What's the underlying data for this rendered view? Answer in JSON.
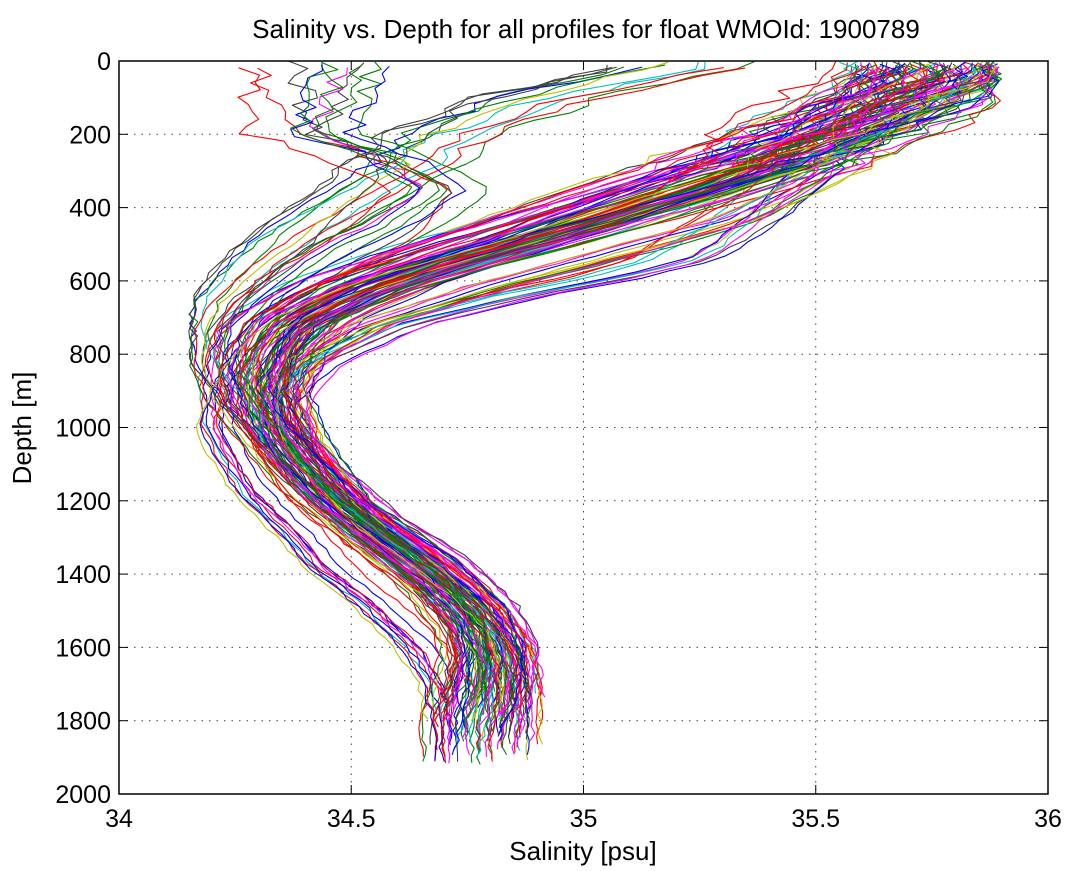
{
  "chart_data": {
    "type": "line",
    "title": "Salinity vs. Depth for all profiles for float WMOId: 1900789",
    "xlabel": "Salinity [psu]",
    "ylabel": "Depth [m]",
    "xlim": [
      34,
      36
    ],
    "ylim": [
      0,
      2000
    ],
    "y_reversed": true,
    "grid": "dotted",
    "x_ticks": [
      "34",
      "34.5",
      "35",
      "35.5",
      "36"
    ],
    "y_ticks": [
      "0",
      "200",
      "400",
      "600",
      "800",
      "1000",
      "1200",
      "1400",
      "1600",
      "1800",
      "2000"
    ],
    "series_colors": [
      "#0000ff",
      "#ff0000",
      "#008000",
      "#ff00ff",
      "#bfbf00",
      "#00bfbf",
      "#404040"
    ],
    "profile_count": 140,
    "representative_profiles": [
      {
        "color": "#0000ff",
        "x": [
          34.78,
          34.8,
          34.81,
          34.82,
          34.8,
          34.72,
          34.62,
          34.5,
          34.4,
          34.36,
          34.38,
          34.45,
          34.62,
          34.85,
          35.1,
          35.35,
          35.55,
          35.7,
          35.8
        ],
        "y": [
          1880,
          1800,
          1700,
          1600,
          1500,
          1400,
          1300,
          1200,
          1000,
          900,
          800,
          700,
          600,
          500,
          400,
          300,
          200,
          100,
          10
        ]
      },
      {
        "color": "#ff0000",
        "x": [
          34.8,
          34.83,
          34.84,
          34.85,
          34.8,
          34.7,
          34.55,
          34.42,
          34.33,
          34.32,
          34.36,
          34.42,
          34.58,
          34.8,
          35.05,
          35.3,
          35.5,
          35.72,
          35.8
        ],
        "y": [
          1820,
          1760,
          1680,
          1600,
          1480,
          1360,
          1240,
          1100,
          980,
          880,
          790,
          700,
          610,
          520,
          430,
          330,
          230,
          120,
          20
        ]
      },
      {
        "color": "#008000",
        "x": [
          34.76,
          34.78,
          34.79,
          34.78,
          34.72,
          34.6,
          34.48,
          34.38,
          34.3,
          34.28,
          34.3,
          34.36,
          34.5,
          34.7,
          34.95,
          35.2,
          35.45,
          35.65,
          35.78
        ],
        "y": [
          1800,
          1720,
          1640,
          1560,
          1440,
          1320,
          1200,
          1080,
          960,
          860,
          780,
          700,
          620,
          530,
          440,
          350,
          250,
          140,
          30
        ]
      },
      {
        "color": "#bfbf00",
        "x": [
          34.72,
          34.7,
          34.65,
          34.55,
          34.45,
          34.38,
          34.3,
          34.25,
          34.22,
          34.22,
          34.24,
          34.3,
          34.45,
          34.7,
          34.95,
          35.2,
          35.45,
          35.75
        ],
        "y": [
          1830,
          1700,
          1600,
          1480,
          1380,
          1280,
          1180,
          1080,
          1000,
          900,
          800,
          700,
          600,
          500,
          400,
          300,
          200,
          30
        ]
      },
      {
        "color": "#ff00ff",
        "x": [
          34.74,
          34.76,
          34.77,
          34.76,
          34.68,
          34.55,
          34.44,
          34.36,
          34.3,
          34.28,
          34.3,
          34.35,
          34.48,
          34.65,
          34.85,
          35.05,
          35.3,
          35.55,
          35.75
        ],
        "y": [
          1790,
          1720,
          1640,
          1560,
          1440,
          1320,
          1200,
          1080,
          960,
          870,
          790,
          710,
          620,
          540,
          450,
          360,
          260,
          150,
          40
        ]
      },
      {
        "color": "#00bfbf",
        "x": [
          34.82,
          34.83,
          34.84,
          34.83,
          34.76,
          34.65,
          34.52,
          34.42,
          34.35,
          34.33,
          34.35,
          34.4,
          34.55,
          34.78,
          35.05,
          35.3,
          35.55,
          35.88
        ],
        "y": [
          1840,
          1760,
          1680,
          1600,
          1480,
          1360,
          1240,
          1120,
          1000,
          900,
          800,
          720,
          630,
          540,
          450,
          350,
          250,
          60
        ]
      },
      {
        "color": "#404040",
        "x": [
          34.84,
          34.85,
          34.85,
          34.84,
          34.78,
          34.68,
          34.55,
          34.44,
          34.37,
          34.35,
          34.36,
          34.4,
          34.52,
          34.72,
          34.98,
          35.25,
          35.5,
          35.7,
          35.82
        ],
        "y": [
          1880,
          1800,
          1720,
          1640,
          1520,
          1400,
          1280,
          1160,
          1040,
          930,
          830,
          740,
          650,
          560,
          470,
          380,
          280,
          160,
          40
        ]
      },
      {
        "color": "#0000ff",
        "x": [
          34.7,
          34.72,
          34.74,
          34.72,
          34.64,
          34.52,
          34.4,
          34.32,
          34.24,
          34.2,
          34.19,
          34.22,
          34.3,
          34.4,
          34.5,
          34.6,
          34.7,
          34.9,
          35.2
        ],
        "y": [
          1780,
          1700,
          1620,
          1540,
          1420,
          1300,
          1180,
          1060,
          940,
          840,
          740,
          660,
          560,
          460,
          380,
          300,
          200,
          100,
          20
        ]
      },
      {
        "color": "#ff0000",
        "x": [
          34.86,
          34.85,
          34.83,
          34.78,
          34.7,
          34.58,
          34.46,
          34.37,
          34.35,
          34.42,
          34.6,
          34.85,
          35.05,
          35.2,
          35.35,
          35.45,
          35.55,
          35.7
        ],
        "y": [
          1740,
          1660,
          1580,
          1500,
          1400,
          1300,
          1180,
          1060,
          940,
          830,
          720,
          640,
          590,
          540,
          420,
          320,
          200,
          60
        ]
      },
      {
        "color": "#008000",
        "x": [
          34.85,
          34.84,
          34.82,
          34.76,
          34.66,
          34.55,
          34.45,
          34.38,
          34.36,
          34.4,
          34.55,
          34.8,
          35.1,
          35.35,
          35.5,
          35.55,
          35.6,
          35.65
        ],
        "y": [
          1720,
          1640,
          1560,
          1480,
          1380,
          1280,
          1160,
          1040,
          920,
          820,
          720,
          620,
          520,
          430,
          330,
          290,
          180,
          50
        ]
      },
      {
        "color": "#ff00ff",
        "x": [
          34.71,
          34.74,
          34.75,
          34.74,
          34.66,
          34.54,
          34.42,
          34.33,
          34.27,
          34.24,
          34.26,
          34.33,
          34.45,
          34.6,
          34.7,
          34.55,
          34.42,
          34.43
        ],
        "y": [
          1770,
          1700,
          1620,
          1540,
          1420,
          1300,
          1180,
          1060,
          940,
          840,
          740,
          650,
          550,
          450,
          350,
          250,
          200,
          20
        ]
      },
      {
        "color": "#0000ff",
        "x": [
          34.8,
          34.81,
          34.82,
          34.81,
          34.74,
          34.62,
          34.5,
          34.41,
          34.34,
          34.31,
          34.33,
          34.38,
          34.52,
          34.74,
          35.0,
          35.22,
          35.35,
          35.45,
          35.7
        ],
        "y": [
          1860,
          1780,
          1700,
          1620,
          1500,
          1380,
          1260,
          1140,
          1020,
          910,
          810,
          730,
          640,
          550,
          460,
          370,
          270,
          160,
          30
        ]
      }
    ]
  }
}
